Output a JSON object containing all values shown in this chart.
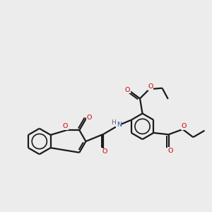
{
  "bg_color": "#ececec",
  "bond_color": "#1a1a1a",
  "oxygen_color": "#cc0000",
  "nitrogen_color": "#2255aa",
  "h_color": "#556677",
  "line_width": 1.6,
  "figsize": [
    3.0,
    3.0
  ],
  "dpi": 100,
  "xlim": [
    0,
    10
  ],
  "ylim": [
    0,
    10
  ]
}
